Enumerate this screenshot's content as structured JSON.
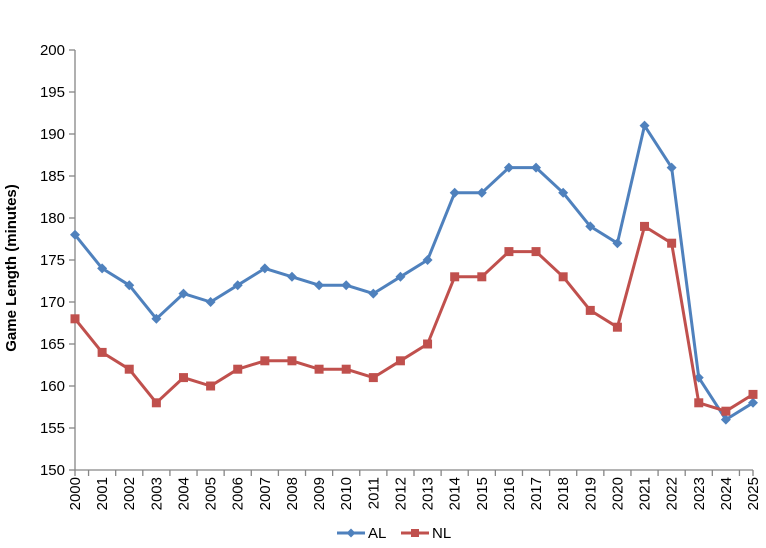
{
  "chart_data": {
    "type": "line",
    "x": [
      "2000",
      "2001",
      "2002",
      "2003",
      "2004",
      "2005",
      "2006",
      "2007",
      "2008",
      "2009",
      "2010",
      "2011",
      "2012",
      "2013",
      "2014",
      "2015",
      "2016",
      "2017",
      "2018",
      "2019",
      "2020",
      "2021",
      "2022",
      "2023",
      "2024",
      "2025"
    ],
    "series": [
      {
        "name": "AL",
        "color": "#4F81BD",
        "marker": "diamond",
        "values": [
          178,
          174,
          172,
          168,
          171,
          170,
          172,
          174,
          173,
          172,
          172,
          171,
          173,
          175,
          183,
          183,
          186,
          186,
          183,
          179,
          177,
          191,
          186,
          161,
          156,
          158
        ]
      },
      {
        "name": "NL",
        "color": "#C0504D",
        "marker": "square",
        "values": [
          168,
          164,
          162,
          158,
          161,
          160,
          162,
          163,
          163,
          162,
          162,
          161,
          163,
          165,
          173,
          173,
          176,
          176,
          173,
          169,
          167,
          179,
          177,
          158,
          157,
          159
        ]
      }
    ],
    "title": "",
    "xlabel": "",
    "ylabel": "Game Length (minutes)",
    "ylim": [
      150,
      200
    ],
    "ytick_step": 5,
    "yticks": [
      150,
      155,
      160,
      165,
      170,
      175,
      180,
      185,
      190,
      195,
      200
    ],
    "grid": false,
    "legend_position": "bottom-center",
    "axis_color": "#868686",
    "text_color": "#000000",
    "background": "#FFFFFF"
  }
}
